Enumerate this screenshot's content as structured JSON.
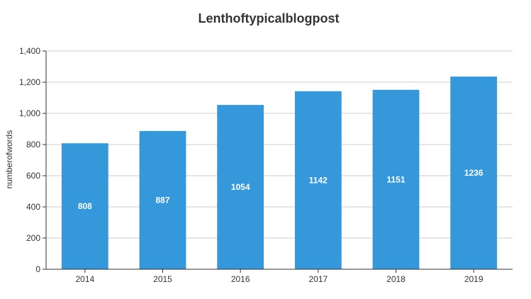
{
  "chart_data": {
    "type": "bar",
    "title": "Lenthoftypicalblogpost",
    "xlabel": "",
    "ylabel": "numberofwords",
    "categories": [
      "2014",
      "2015",
      "2016",
      "2017",
      "2018",
      "2019"
    ],
    "values": [
      808,
      887,
      1054,
      1142,
      1151,
      1236
    ],
    "ylim": [
      0,
      1400
    ],
    "yticks": [
      0,
      200,
      400,
      600,
      800,
      1000,
      1200,
      1400
    ],
    "ytick_labels": [
      "0",
      "200",
      "400",
      "600",
      "800",
      "1,000",
      "1,200",
      "1,400"
    ],
    "grid": true,
    "legend": "none",
    "bar_color": "#3498db"
  }
}
